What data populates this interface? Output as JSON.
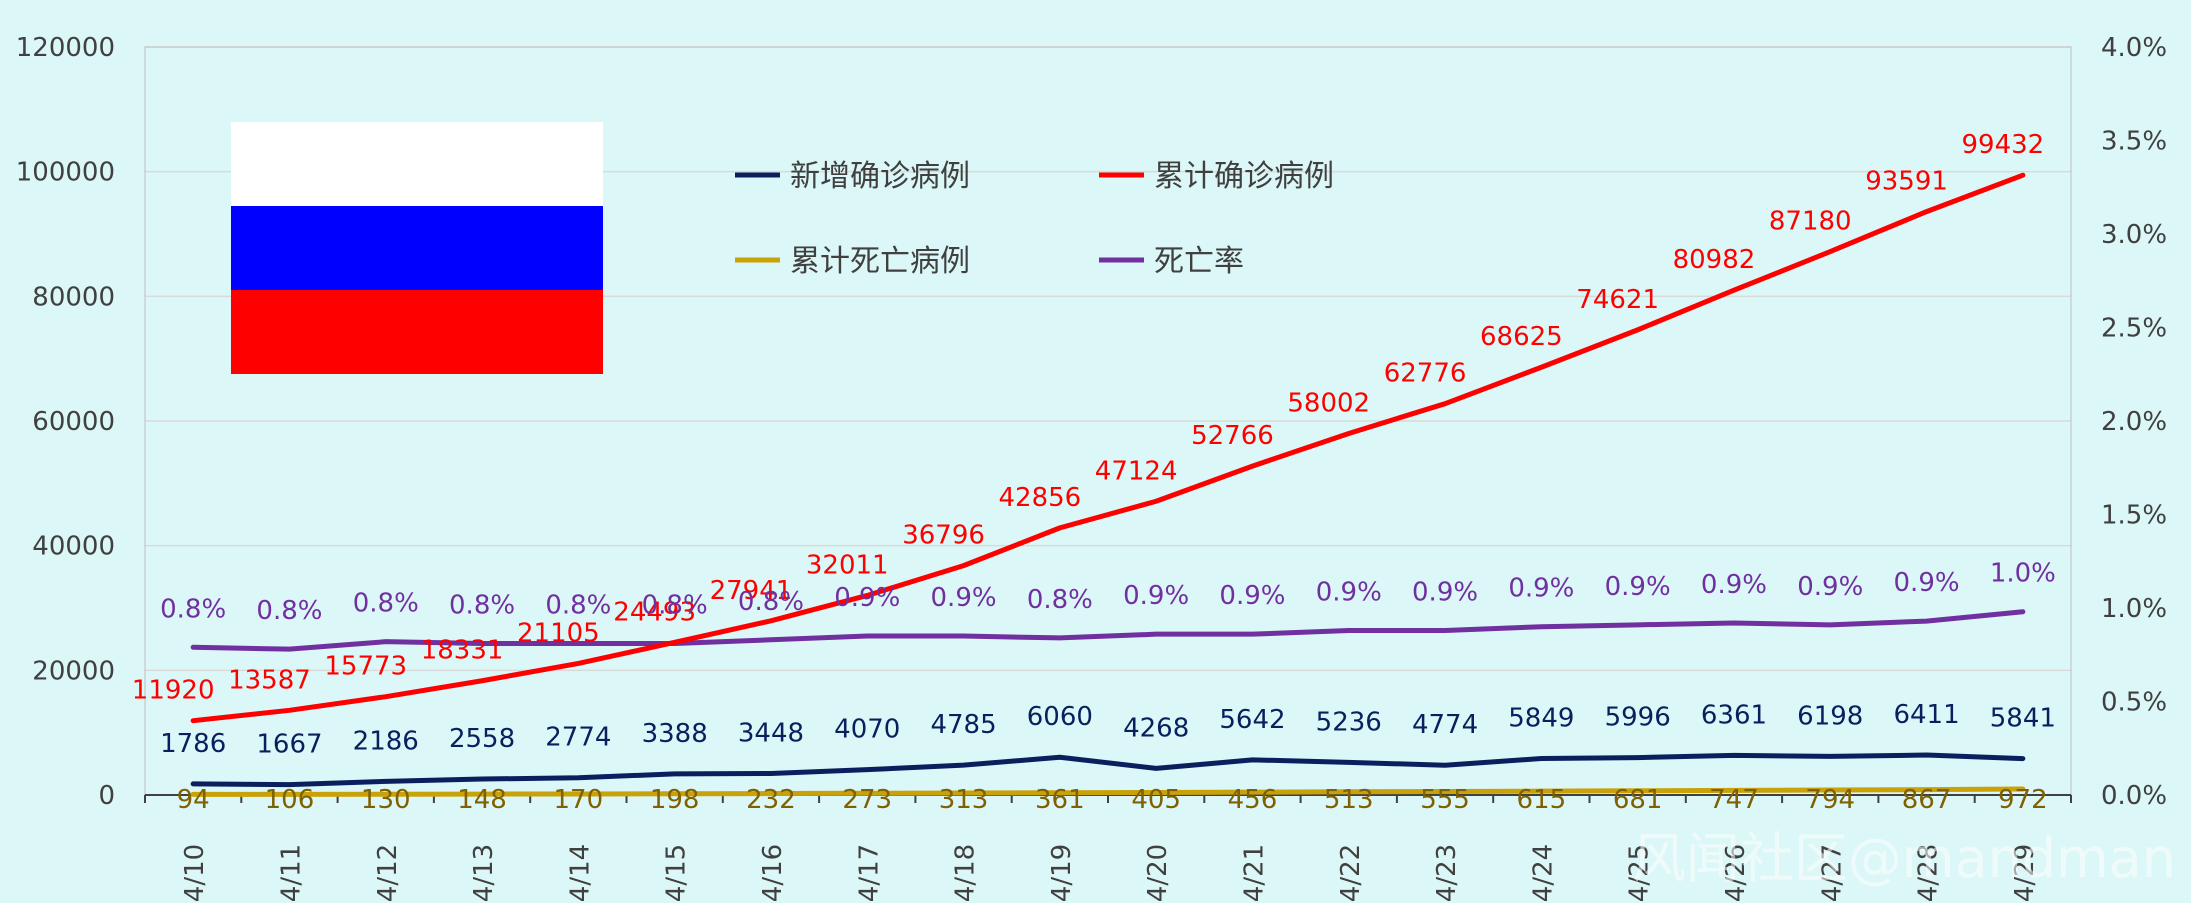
{
  "chart_data": {
    "type": "line",
    "title": "",
    "x": [
      "4/10",
      "4/11",
      "4/12",
      "4/13",
      "4/14",
      "4/15",
      "4/16",
      "4/17",
      "4/18",
      "4/19",
      "4/20",
      "4/21",
      "4/22",
      "4/23",
      "4/24",
      "4/25",
      "4/26",
      "4/27",
      "4/28",
      "4/29"
    ],
    "y_left_ticks": [
      "0",
      "20000",
      "40000",
      "60000",
      "80000",
      "100000",
      "120000"
    ],
    "y_right_ticks": [
      "0.0%",
      "0.5%",
      "1.0%",
      "1.5%",
      "2.0%",
      "2.5%",
      "3.0%",
      "3.5%",
      "4.0%"
    ],
    "ylim_left": [
      0,
      120000
    ],
    "ylim_right": [
      0,
      0.04
    ],
    "series": [
      {
        "name": "新增确诊病例",
        "axis": "left",
        "color": "#0b1f5e",
        "values": [
          1786,
          1667,
          2186,
          2558,
          2774,
          3388,
          3448,
          4070,
          4785,
          6060,
          4268,
          5642,
          5236,
          4774,
          5849,
          5996,
          6361,
          6198,
          6411,
          5841
        ],
        "labels": [
          "1786",
          "1667",
          "2186",
          "2558",
          "2774",
          "3388",
          "3448",
          "4070",
          "4785",
          "6060",
          "4268",
          "5642",
          "5236",
          "4774",
          "5849",
          "5996",
          "6361",
          "6198",
          "6411",
          "5841"
        ]
      },
      {
        "name": "累计确诊病例",
        "axis": "left",
        "color": "#ff0000",
        "values": [
          11920,
          13587,
          15773,
          18331,
          21105,
          24493,
          27941,
          32011,
          36796,
          42856,
          47124,
          52766,
          58002,
          62776,
          68625,
          74621,
          80982,
          87180,
          93591,
          99432
        ],
        "labels": [
          "11920",
          "13587",
          "15773",
          "18331",
          "21105",
          "24493",
          "27941",
          "32011",
          "36796",
          "42856",
          "47124",
          "52766",
          "58002",
          "62776",
          "68625",
          "74621",
          "80982",
          "87180",
          "93591",
          "99432"
        ]
      },
      {
        "name": "累计死亡病例",
        "axis": "left",
        "color": "#c9a20a",
        "values": [
          94,
          106,
          130,
          148,
          170,
          198,
          232,
          273,
          313,
          361,
          405,
          456,
          513,
          555,
          615,
          681,
          747,
          794,
          867,
          972
        ],
        "labels": [
          "94",
          "106",
          "130",
          "148",
          "170",
          "198",
          "232",
          "273",
          "313",
          "361",
          "405",
          "456",
          "513",
          "555",
          "615",
          "681",
          "747",
          "794",
          "867",
          "972"
        ]
      },
      {
        "name": "死亡率",
        "axis": "right",
        "color": "#7030a0",
        "values": [
          0.0079,
          0.0078,
          0.0082,
          0.0081,
          0.0081,
          0.0081,
          0.0083,
          0.0085,
          0.0085,
          0.0084,
          0.0086,
          0.0086,
          0.0088,
          0.0088,
          0.009,
          0.0091,
          0.0092,
          0.0091,
          0.0093,
          0.0098
        ],
        "labels": [
          "0.8%",
          "0.8%",
          "0.8%",
          "0.8%",
          "0.8%",
          "0.8%",
          "0.8%",
          "0.9%",
          "0.9%",
          "0.8%",
          "0.9%",
          "0.9%",
          "0.9%",
          "0.9%",
          "0.9%",
          "0.9%",
          "0.9%",
          "0.9%",
          "0.9%",
          "1.0%"
        ]
      }
    ],
    "legend": [
      "新增确诊病例",
      "累计确诊病例",
      "累计死亡病例",
      "死亡率"
    ],
    "legend_position": "top-center",
    "grid": true,
    "flag_colors": [
      "#ffffff",
      "#0000ff",
      "#ff0000"
    ],
    "watermark": "风闻社区@mandman"
  },
  "colors": {
    "background": "#dcf7f7",
    "plot_area": "#ffffff00",
    "grid": "#d9d9d9"
  }
}
